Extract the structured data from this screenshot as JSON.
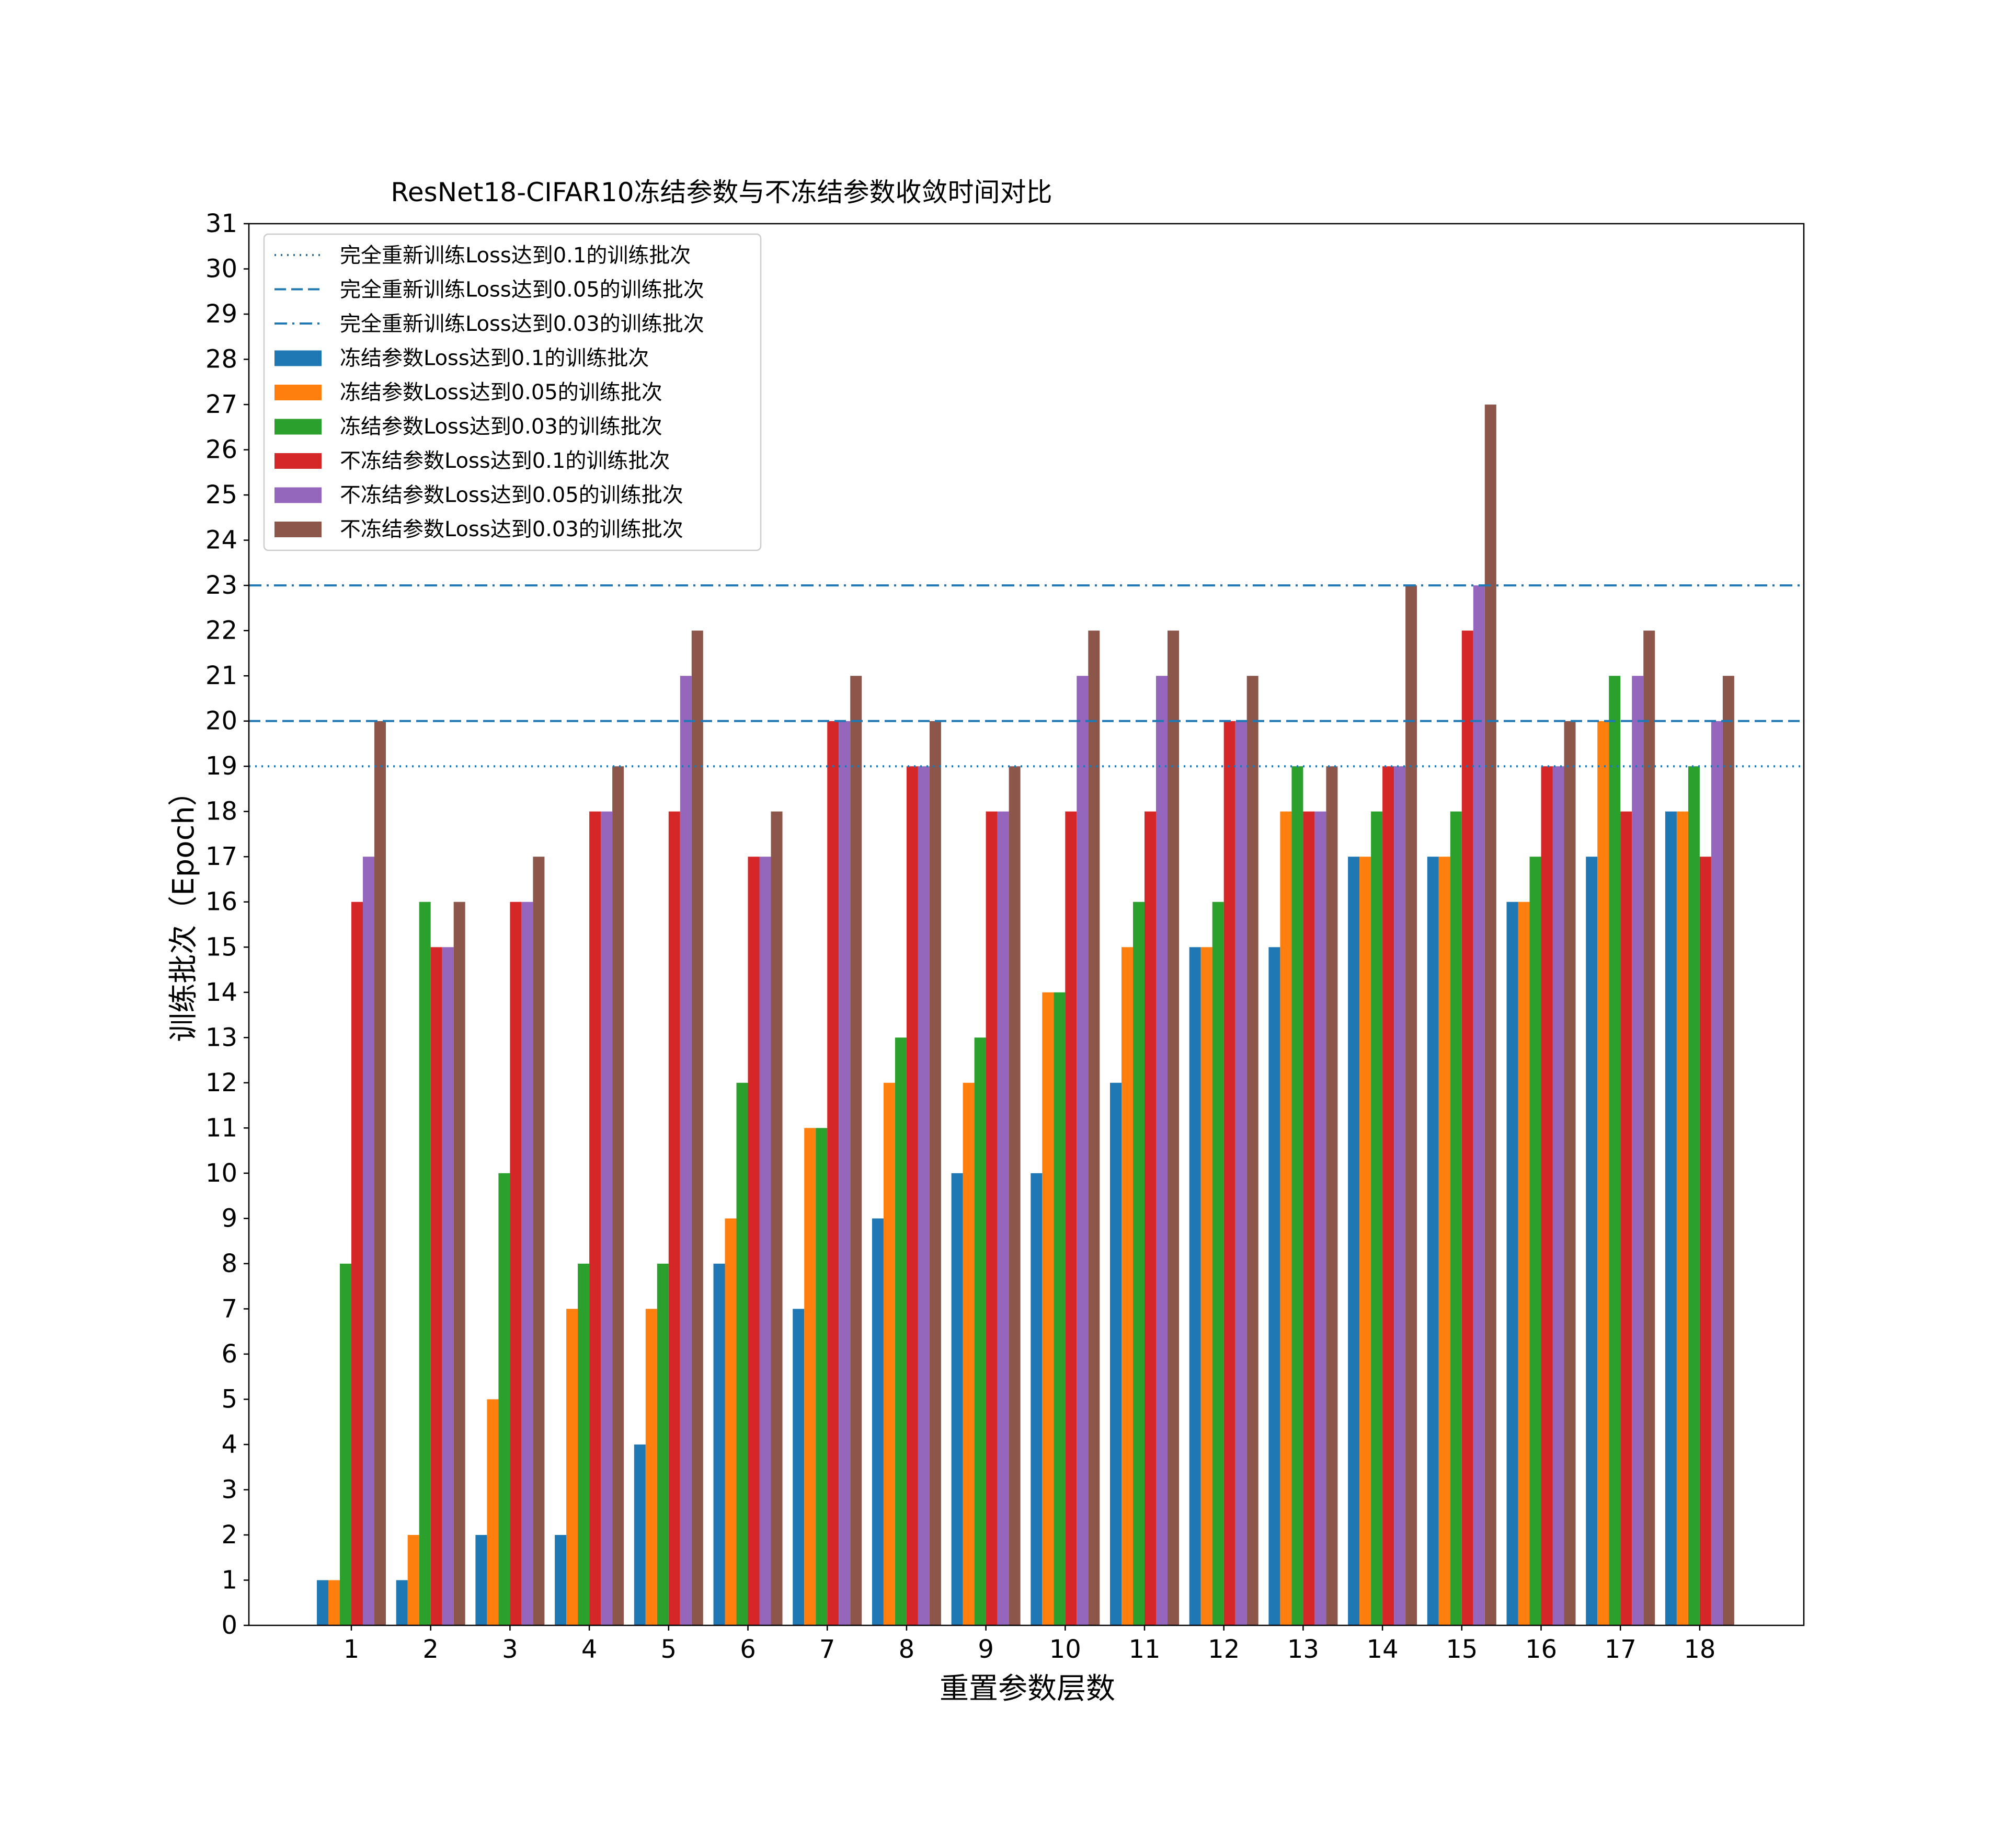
{
  "chart_data": {
    "type": "bar",
    "title": "ResNet18-CIFAR10冻结参数与不冻结参数收敛时间对比",
    "xlabel": "重置参数层数",
    "ylabel": "训练批次（Epoch）",
    "ylim": [
      0,
      31
    ],
    "yticks": [
      "0",
      "1",
      "2",
      "3",
      "4",
      "5",
      "6",
      "7",
      "8",
      "9",
      "10",
      "11",
      "12",
      "13",
      "14",
      "15",
      "16",
      "17",
      "18",
      "19",
      "20",
      "21",
      "22",
      "23",
      "24",
      "25",
      "26",
      "27",
      "28",
      "29",
      "30",
      "31"
    ],
    "categories": [
      "1",
      "2",
      "3",
      "4",
      "5",
      "6",
      "7",
      "8",
      "9",
      "10",
      "11",
      "12",
      "13",
      "14",
      "15",
      "16",
      "17",
      "18"
    ],
    "grid": false,
    "legend_position": "top-left",
    "series": [
      {
        "name": "冻结参数Loss达到0.1的训练批次",
        "color": "#1f77b4",
        "values": [
          1,
          1,
          2,
          2,
          4,
          8,
          7,
          9,
          10,
          10,
          12,
          15,
          15,
          17,
          17,
          16,
          17,
          18
        ]
      },
      {
        "name": "冻结参数Loss达到0.05的训练批次",
        "color": "#ff7f0e",
        "values": [
          1,
          2,
          5,
          7,
          7,
          9,
          11,
          12,
          12,
          14,
          15,
          15,
          18,
          17,
          17,
          16,
          20,
          18
        ]
      },
      {
        "name": "冻结参数Loss达到0.03的训练批次",
        "color": "#2ca02c",
        "values": [
          8,
          16,
          10,
          8,
          8,
          12,
          11,
          13,
          13,
          14,
          16,
          16,
          19,
          18,
          18,
          17,
          21,
          19
        ]
      },
      {
        "name": "不冻结参数Loss达到0.1的训练批次",
        "color": "#d62728",
        "values": [
          16,
          15,
          16,
          18,
          18,
          17,
          20,
          19,
          18,
          18,
          18,
          20,
          18,
          19,
          22,
          19,
          18,
          17
        ]
      },
      {
        "name": "不冻结参数Loss达到0.05的训练批次",
        "color": "#9467bd",
        "values": [
          17,
          15,
          16,
          18,
          21,
          17,
          20,
          19,
          18,
          21,
          21,
          20,
          18,
          19,
          23,
          19,
          21,
          20
        ]
      },
      {
        "name": "不冻结参数Loss达到0.03的训练批次",
        "color": "#8c564b",
        "values": [
          20,
          16,
          17,
          19,
          22,
          18,
          21,
          20,
          19,
          22,
          22,
          21,
          19,
          23,
          27,
          20,
          22,
          21
        ]
      }
    ],
    "reference_lines": [
      {
        "name": "完全重新训练Loss达到0.1的训练批次",
        "value": 19,
        "style": "dotted",
        "color": "#1f77b4"
      },
      {
        "name": "完全重新训练Loss达到0.05的训练批次",
        "value": 20,
        "style": "dashed",
        "color": "#1f77b4"
      },
      {
        "name": "完全重新训练Loss达到0.03的训练批次",
        "value": 23,
        "style": "dashdot",
        "color": "#1f77b4"
      }
    ]
  }
}
